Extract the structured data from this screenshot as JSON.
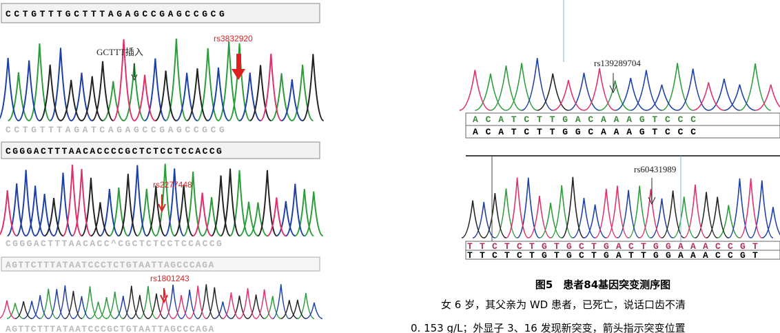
{
  "left_panels": [
    {
      "top_sequence": "CCTGTTTGCTTTAGAGCCGAGCCGCG",
      "bottom_sequence": "CCTGTTTAGATCAGAGCCGAGCCGCG",
      "annotations": [
        "GCTTT插入",
        "rs3832920"
      ]
    },
    {
      "top_sequence": "CGGGACTTTAACACCCCGCTCTCCTCCACCG",
      "bottom_sequence": "CGGGACTTTAACACC^CGCTCTCCTCCACCG",
      "annotations": [
        "rs2277448"
      ]
    },
    {
      "top_sequence": "AGTTCTTTATAATCCCTCTGTAATTAGCCCAGA",
      "bottom_sequence": "AGTTCTTTATAATCCCGCTGTAATTAGCCCAGA",
      "annotations": [
        "rs1801243"
      ]
    }
  ],
  "right_panels": [
    {
      "annotation": "rs139289704",
      "sequence_1": "A C A T C T T G A C A A A G T C C C",
      "sequence_2": "A C A T C T T G G C A A A G T C C C"
    },
    {
      "annotation": "rs60431989",
      "sequence_1": "T T C T C T G T G C T G A C T G G A A A C C G T",
      "sequence_2": "T T C T C T G T G C T G A T T G G A A A C C G T"
    }
  ],
  "caption": "图5　患者84基因突变测序图",
  "body_lines": [
    "女 6 岁，其父亲为 WD 患者，已死亡，说话口齿不清",
    "0. 153 g/L；外显子 3、16 发现新突变，箭头指示突变位置"
  ]
}
